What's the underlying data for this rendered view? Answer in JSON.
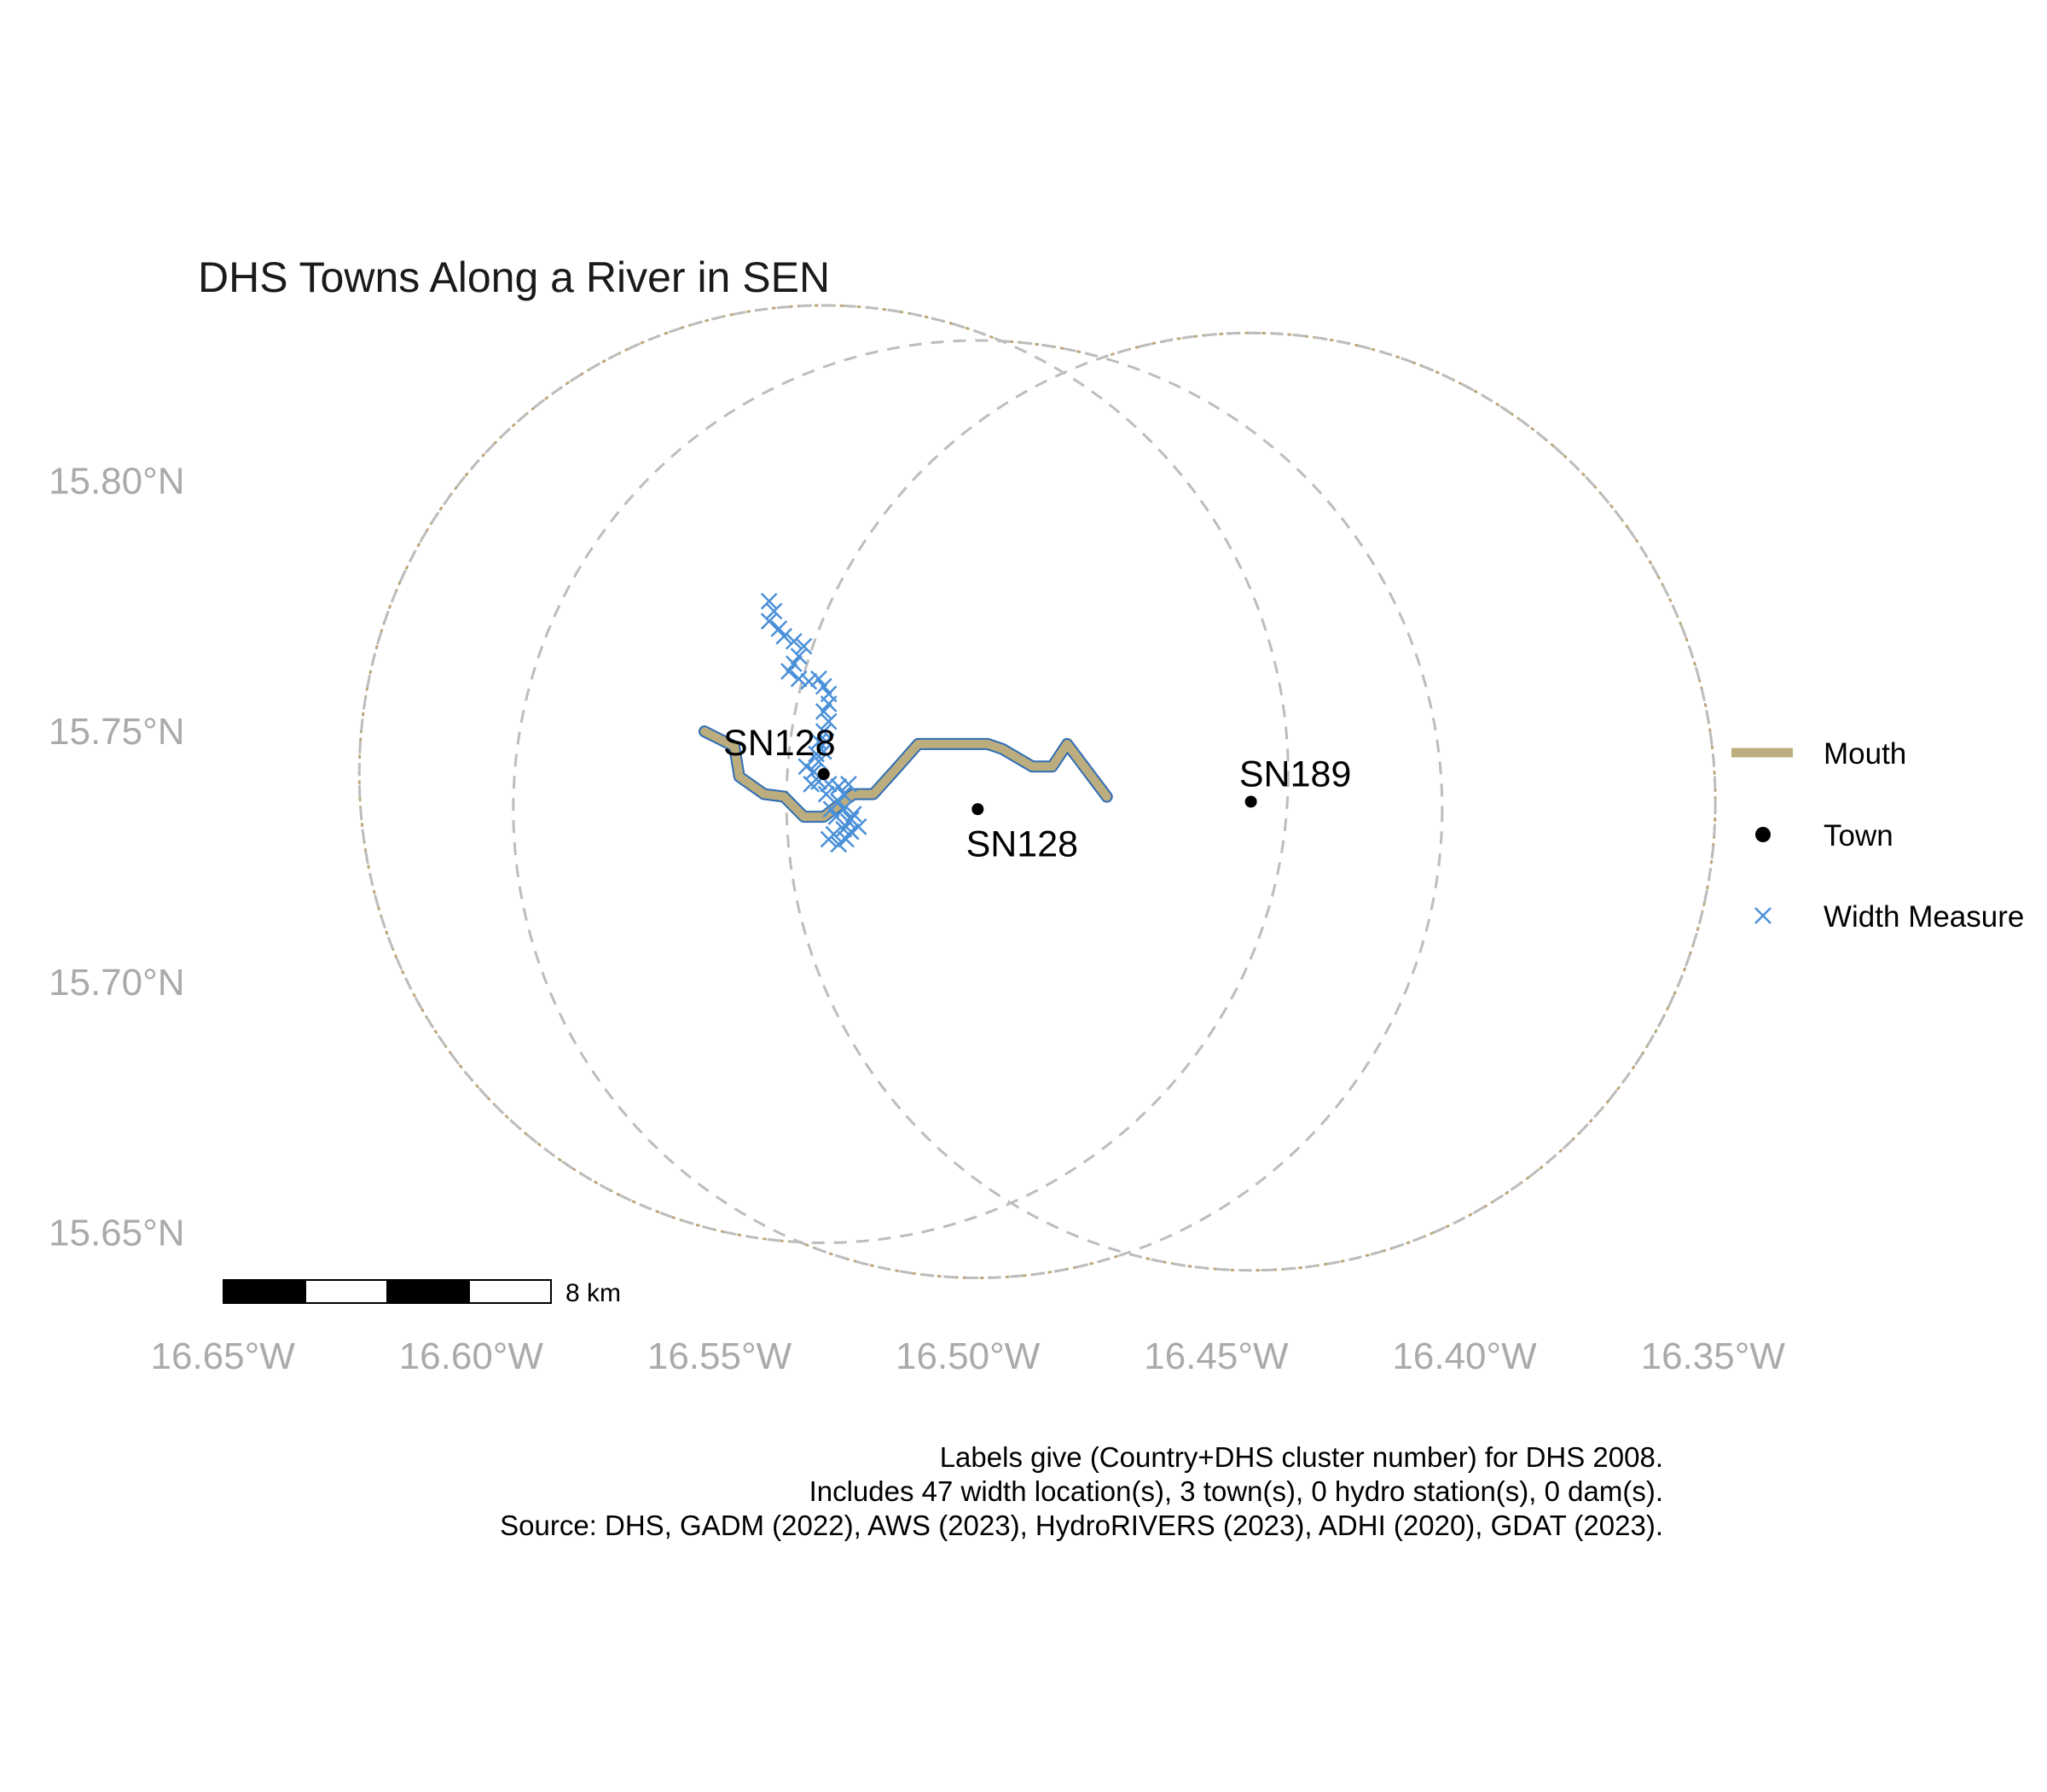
{
  "chart_data": {
    "type": "map",
    "title": "DHS Towns Along a River in SEN",
    "x_ticks": [
      {
        "lon": -16.65,
        "label": "16.65°W"
      },
      {
        "lon": -16.6,
        "label": "16.60°W"
      },
      {
        "lon": -16.55,
        "label": "16.55°W"
      },
      {
        "lon": -16.5,
        "label": "16.50°W"
      },
      {
        "lon": -16.45,
        "label": "16.45°W"
      },
      {
        "lon": -16.4,
        "label": "16.40°W"
      },
      {
        "lon": -16.35,
        "label": "16.35°W"
      }
    ],
    "y_ticks": [
      {
        "lat": 15.8,
        "label": "15.80°N"
      },
      {
        "lat": 15.75,
        "label": "15.75°N"
      },
      {
        "lat": 15.7,
        "label": "15.70°N"
      },
      {
        "lat": 15.65,
        "label": "15.65°N"
      }
    ],
    "xlim": [
      -16.655,
      -16.36
    ],
    "ylim": [
      15.637,
      15.828
    ],
    "grid": false,
    "towns": [
      {
        "name": "SN128",
        "lon": -16.529,
        "lat": 15.7415
      },
      {
        "name": "SN128",
        "lon": -16.498,
        "lat": 15.7345
      },
      {
        "name": "SN189",
        "lon": -16.443,
        "lat": 15.736
      }
    ],
    "buffers": [
      {
        "lon": -16.529,
        "lat": 15.7415,
        "radius_deg": 0.0935
      },
      {
        "lon": -16.498,
        "lat": 15.7345,
        "radius_deg": 0.0935
      },
      {
        "lon": -16.443,
        "lat": 15.736,
        "radius_deg": 0.0935
      }
    ],
    "river_mouth": [
      [
        -16.553,
        15.75
      ],
      [
        -16.547,
        15.747
      ],
      [
        -16.546,
        15.741
      ],
      [
        -16.541,
        15.7375
      ],
      [
        -16.537,
        15.737
      ],
      [
        -16.533,
        15.733
      ],
      [
        -16.529,
        15.733
      ],
      [
        -16.523,
        15.7375
      ],
      [
        -16.519,
        15.7375
      ],
      [
        -16.514,
        15.743
      ],
      [
        -16.51,
        15.7475
      ],
      [
        -16.505,
        15.7475
      ],
      [
        -16.496,
        15.7475
      ],
      [
        -16.493,
        15.7465
      ],
      [
        -16.487,
        15.743
      ],
      [
        -16.483,
        15.743
      ],
      [
        -16.48,
        15.7475
      ],
      [
        -16.472,
        15.737
      ]
    ],
    "width_measures": [
      [
        -16.54,
        15.776
      ],
      [
        -16.539,
        15.774
      ],
      [
        -16.54,
        15.772
      ],
      [
        -16.538,
        15.7705
      ],
      [
        -16.537,
        15.769
      ],
      [
        -16.535,
        15.768
      ],
      [
        -16.533,
        15.767
      ],
      [
        -16.534,
        15.765
      ],
      [
        -16.535,
        15.7635
      ],
      [
        -16.536,
        15.762
      ],
      [
        -16.534,
        15.7605
      ],
      [
        -16.532,
        15.76
      ],
      [
        -16.53,
        15.7605
      ],
      [
        -16.529,
        15.759
      ],
      [
        -16.528,
        15.7575
      ],
      [
        -16.528,
        15.7555
      ],
      [
        -16.529,
        15.754
      ],
      [
        -16.528,
        15.752
      ],
      [
        -16.529,
        15.75
      ],
      [
        -16.53,
        15.748
      ],
      [
        -16.529,
        15.746
      ],
      [
        -16.53,
        15.744
      ],
      [
        -16.531,
        15.742
      ],
      [
        -16.53,
        15.74
      ],
      [
        -16.528,
        15.7395
      ],
      [
        -16.526,
        15.739
      ],
      [
        -16.524,
        15.7395
      ],
      [
        -16.525,
        15.7375
      ],
      [
        -16.526,
        15.736
      ],
      [
        -16.525,
        15.7345
      ],
      [
        -16.523,
        15.7335
      ],
      [
        -16.524,
        15.732
      ],
      [
        -16.525,
        15.7305
      ],
      [
        -16.527,
        15.7295
      ],
      [
        -16.528,
        15.7285
      ],
      [
        -16.526,
        15.7275
      ],
      [
        -16.5245,
        15.7285
      ],
      [
        -16.5235,
        15.73
      ],
      [
        -16.522,
        15.731
      ],
      [
        -16.5235,
        15.7325
      ],
      [
        -16.5265,
        15.733
      ],
      [
        -16.5275,
        15.7345
      ],
      [
        -16.5285,
        15.7375
      ],
      [
        -16.5315,
        15.7395
      ],
      [
        -16.5325,
        15.743
      ],
      [
        -16.5305,
        15.7455
      ],
      [
        -16.5285,
        15.748
      ]
    ],
    "legend": {
      "position": "right",
      "items": [
        {
          "label": "Mouth",
          "kind": "line",
          "color": "#BCAD7E"
        },
        {
          "label": "Town",
          "kind": "point",
          "color": "#000000"
        },
        {
          "label": "Width Measure",
          "kind": "cross",
          "color": "#4A90D9"
        }
      ]
    },
    "scale_bar": {
      "label": "8 km"
    },
    "caption": [
      "Labels give (Country+DHS cluster number) for DHS 2008.",
      "Includes 47 width location(s), 3 town(s), 0 hydro station(s), 0 dam(s).",
      "Source: DHS, GADM (2022), AWS (2023), HydroRIVERS (2023), ADHI (2020), GDAT (2023)."
    ],
    "colors": {
      "mouth": "#BCAD7E",
      "river_outline": "#2E6DB4",
      "width_measure": "#4A90D9",
      "buffer": "#BDBDBD",
      "union_outline": "#BCA77A",
      "tick_text": "#AAAAAA"
    }
  }
}
